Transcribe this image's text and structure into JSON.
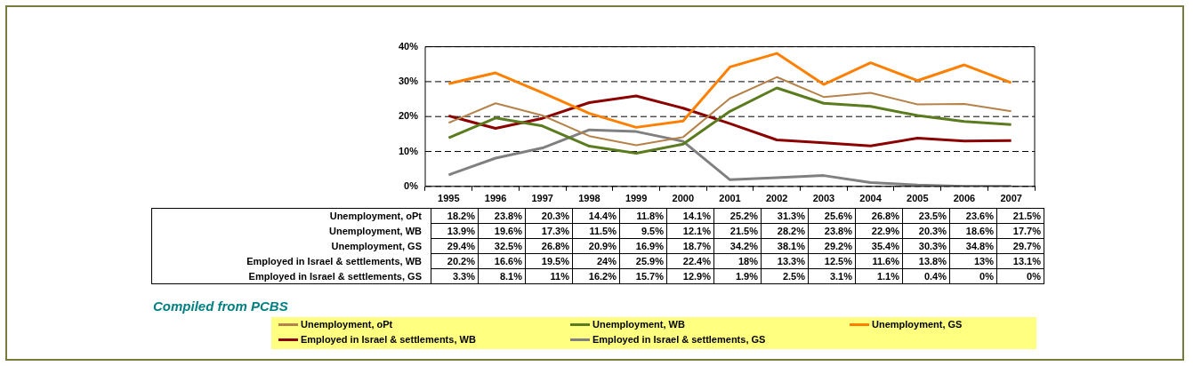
{
  "chart_data": {
    "type": "line",
    "categories": [
      "1995",
      "1996",
      "1997",
      "1998",
      "1999",
      "2000",
      "2001",
      "2002",
      "2003",
      "2004",
      "2005",
      "2006",
      "2007"
    ],
    "series": [
      {
        "name": "Unemployment, oPt",
        "color": "#b5834a",
        "values": [
          18.2,
          23.8,
          20.3,
          14.4,
          11.8,
          14.1,
          25.2,
          31.3,
          25.6,
          26.8,
          23.5,
          23.6,
          21.5
        ],
        "value_labels": [
          "18.2%",
          "23.8%",
          "20.3%",
          "14.4%",
          "11.8%",
          "14.1%",
          "25.2%",
          "31.3%",
          "25.6%",
          "26.8%",
          "23.5%",
          "23.6%",
          "21.5%"
        ]
      },
      {
        "name": "Unemployment, WB",
        "color": "#5b7b1f",
        "values": [
          13.9,
          19.6,
          17.3,
          11.5,
          9.5,
          12.1,
          21.5,
          28.2,
          23.8,
          22.9,
          20.3,
          18.6,
          17.7
        ],
        "value_labels": [
          "13.9%",
          "19.6%",
          "17.3%",
          "11.5%",
          "9.5%",
          "12.1%",
          "21.5%",
          "28.2%",
          "23.8%",
          "22.9%",
          "20.3%",
          "18.6%",
          "17.7%"
        ]
      },
      {
        "name": "Unemployment, GS",
        "color": "#ff8000",
        "values": [
          29.4,
          32.5,
          26.8,
          20.9,
          16.9,
          18.7,
          34.2,
          38.1,
          29.2,
          35.4,
          30.3,
          34.8,
          29.7
        ],
        "value_labels": [
          "29.4%",
          "32.5%",
          "26.8%",
          "20.9%",
          "16.9%",
          "18.7%",
          "34.2%",
          "38.1%",
          "29.2%",
          "35.4%",
          "30.3%",
          "34.8%",
          "29.7%"
        ]
      },
      {
        "name": "Employed in Israel & settlements, WB",
        "color": "#8b0000",
        "values": [
          20.2,
          16.6,
          19.5,
          24,
          25.9,
          22.4,
          18,
          13.3,
          12.5,
          11.6,
          13.8,
          13,
          13.1
        ],
        "value_labels": [
          "20.2%",
          "16.6%",
          "19.5%",
          "24%",
          "25.9%",
          "22.4%",
          "18%",
          "13.3%",
          "12.5%",
          "11.6%",
          "13.8%",
          "13%",
          "13.1%"
        ]
      },
      {
        "name": "Employed in Israel & settlements, GS",
        "color": "#808080",
        "values": [
          3.3,
          8.1,
          11,
          16.2,
          15.7,
          12.9,
          1.9,
          2.5,
          3.1,
          1.1,
          0.4,
          0,
          0
        ],
        "value_labels": [
          "3.3%",
          "8.1%",
          "11%",
          "16.2%",
          "15.7%",
          "12.9%",
          "1.9%",
          "2.5%",
          "3.1%",
          "1.1%",
          "0.4%",
          "0%",
          "0%"
        ]
      }
    ],
    "ylim": [
      0,
      40
    ],
    "yticks": [
      {
        "value": 0,
        "label": "0%"
      },
      {
        "value": 10,
        "label": "10%"
      },
      {
        "value": 20,
        "label": "20%"
      },
      {
        "value": 30,
        "label": "30%"
      },
      {
        "value": 40,
        "label": "40%"
      }
    ],
    "grid": "y",
    "line_style": "solid",
    "marker": "none",
    "legend": "bottom",
    "data_labels": true,
    "annotations": [
      "Compiled from PCBS"
    ]
  }
}
